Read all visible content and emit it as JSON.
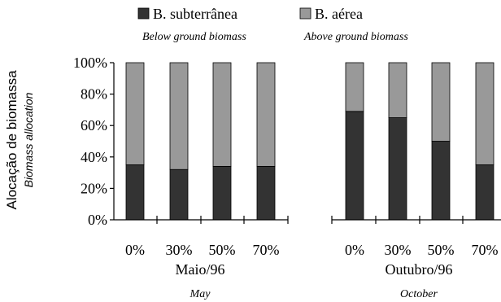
{
  "chart_data": {
    "type": "bar",
    "stacked": true,
    "percent_axis": true,
    "ylim": [
      0,
      100
    ],
    "yticks": [
      "0%",
      "20%",
      "40%",
      "60%",
      "80%",
      "100%"
    ],
    "ylabel": "Alocação de biomassa",
    "ylabel_sub": "Biomass allocation",
    "categories": [
      "0%",
      "30%",
      "50%",
      "70%",
      "0%",
      "30%",
      "50%",
      "70%"
    ],
    "groups": [
      {
        "label": "Maio/96",
        "sublabel": "May",
        "categories": [
          "0%",
          "30%",
          "50%",
          "70%"
        ]
      },
      {
        "label": "Outubro/96",
        "sublabel": "October",
        "categories": [
          "0%",
          "30%",
          "50%",
          "70%"
        ]
      }
    ],
    "series": [
      {
        "name": "B. subterrânea",
        "subname": "Below ground biomass",
        "color": "#333333",
        "values": [
          35,
          32,
          34,
          34,
          69,
          65,
          50,
          35
        ]
      },
      {
        "name": "B. aérea",
        "subname": "Above ground biomass",
        "color": "#999999",
        "values": [
          65,
          68,
          66,
          66,
          31,
          35,
          50,
          65
        ]
      }
    ],
    "legend_position": "top",
    "grid": false
  }
}
